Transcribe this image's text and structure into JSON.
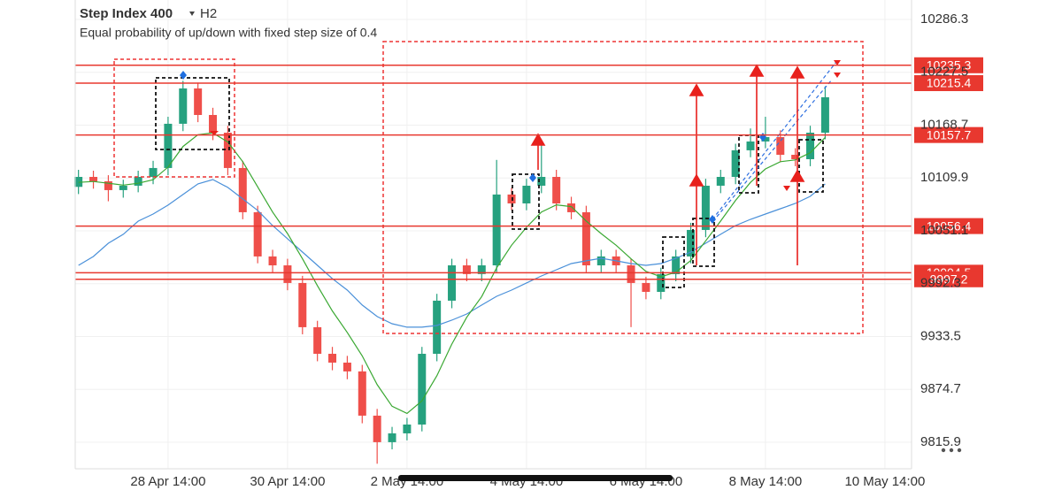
{
  "chart_data": {
    "type": "candlestick",
    "title": "Step Index 400",
    "timeframe": "H2",
    "subtitle": "Equal probability of up/down with fixed step size of 0.4",
    "x": [
      -36,
      -30,
      -24,
      -18,
      -12,
      -6,
      0,
      6,
      12,
      18,
      24,
      30,
      36,
      42,
      48,
      54,
      60,
      66,
      72,
      78,
      84,
      90,
      96,
      102,
      108,
      114,
      120,
      126,
      132,
      138,
      144,
      150,
      156,
      162,
      168,
      174,
      180,
      186,
      192,
      198,
      204,
      210,
      216,
      222,
      228,
      234,
      240,
      246,
      252,
      258,
      264
    ],
    "open": [
      10100.0,
      10111.1,
      10106.2,
      10096.4,
      10101.3,
      10111.1,
      10121.0,
      10170.2,
      10209.5,
      10180.0,
      10160.3,
      10121.0,
      10071.8,
      10022.6,
      10012.7,
      9993.1,
      9943.9,
      9914.3,
      9904.5,
      9894.7,
      9845.5,
      9816.0,
      9825.8,
      9835.6,
      9914.3,
      9973.4,
      10012.7,
      10003.0,
      10012.7,
      10091.5,
      10081.6,
      10101.3,
      10111.1,
      10081.6,
      10071.8,
      10012.7,
      10022.6,
      10012.7,
      9993.1,
      9983.2,
      10002.9,
      10022.6,
      10052.1,
      10101.3,
      10111.1,
      10140.7,
      10150.5,
      10155.4,
      10135.7,
      10130.8,
      10160.3
    ],
    "high": [
      10119,
      10118,
      10113,
      10108,
      10118,
      10129,
      10178,
      10218,
      10216,
      10188,
      10168,
      10129,
      10079,
      10030,
      10020,
      10001,
      9951,
      9922,
      9912,
      9902,
      9853,
      9833,
      9843,
      9922,
      9981,
      10020,
      10020,
      10020,
      10130,
      10099,
      10109,
      10150,
      10119,
      10089,
      10079,
      10030,
      10030,
      10020,
      10000,
      10010,
      10030,
      10060,
      10109,
      10119,
      10148,
      10165,
      10178,
      10163,
      10143,
      10168,
      10212
    ],
    "low": [
      10092,
      10098,
      10084,
      10088,
      10094,
      10103,
      10113,
      10162,
      10172,
      10152,
      10113,
      10064,
      10015,
      10005,
      9985,
      9936,
      9906,
      9896,
      9886,
      9837,
      9792,
      9808,
      9818,
      9828,
      9906,
      9965,
      9995,
      9995,
      10005,
      10074,
      10074,
      10093,
      10074,
      10064,
      10005,
      10005,
      10005,
      9944,
      9975,
      9975,
      9995,
      10015,
      10044,
      10093,
      10103,
      10133,
      10143,
      10128,
      10123,
      10123,
      10153
    ],
    "close": [
      10111.1,
      10106.2,
      10096.4,
      10101.3,
      10111.1,
      10121.0,
      10170.2,
      10209.5,
      10180.0,
      10160.3,
      10121.0,
      10071.8,
      10022.6,
      10012.7,
      9993.1,
      9943.9,
      9914.3,
      9904.5,
      9894.7,
      9845.5,
      9816.0,
      9825.8,
      9835.6,
      9914.3,
      9973.4,
      10012.7,
      10003.0,
      10012.7,
      10091.5,
      10081.6,
      10101.3,
      10111.1,
      10081.6,
      10071.8,
      10012.7,
      10022.6,
      10012.7,
      9993.1,
      9983.2,
      10002.9,
      10022.6,
      10052.1,
      10101.3,
      10111.1,
      10140.7,
      10150.5,
      10155.4,
      10135.7,
      10130.8,
      10160.3,
      10199.7
    ],
    "up_color": "#26a17f",
    "down_color": "#ef4f4a",
    "indicators": [
      {
        "color": "#4a90d9",
        "values": [
          10012.7,
          10022.6,
          10037.3,
          10047.2,
          10061.9,
          10069.8,
          10079.7,
          10091.5,
          10103.3,
          10108.2,
          10099.4,
          10086.6,
          10073.8,
          10057.0,
          10042.3,
          10027.5,
          10012.7,
          9998.0,
          9985.2,
          9968.5,
          9955.7,
          9947.8,
          9943.9,
          9943.9,
          9945.8,
          9951.7,
          9958.6,
          9968.5,
          9978.3,
          9985.2,
          9993.1,
          10000.9,
          10007.8,
          10014.7,
          10017.7,
          10020.6,
          10017.7,
          10014.7,
          10012.7,
          10014.7,
          10020.6,
          10027.5,
          10037.3,
          10047.2,
          10057.0,
          10063.9,
          10069.8,
          10075.7,
          10081.6,
          10089.5,
          10103.3
        ]
      },
      {
        "color": "#3aa832",
        "values": [
          10105,
          10106,
          10104,
          10102,
          10104,
          10108,
          10122,
          10145,
          10158,
          10160,
          10150,
          10128,
          10100,
          10072,
          10048,
          10020,
          9990,
          9962,
          9938,
          9912,
          9880,
          9856,
          9848,
          9862,
          9890,
          9925,
          9955,
          9978,
          10010,
          10035,
          10055,
          10072,
          10080,
          10078,
          10062,
          10048,
          10035,
          10020,
          10006,
          10000,
          10005,
          10018,
          10040,
          10062,
          10085,
          10105,
          10120,
          10128,
          10130,
          10138,
          10155
        ]
      }
    ],
    "levels": [
      10235.3,
      10215.4,
      10157.7,
      10056.4,
      10004.5,
      9997.2
    ],
    "level_color": "#e8382f",
    "xlim": [
      -37.3,
      298.7
    ],
    "xticks": [
      {
        "value": 0,
        "label": "28 Apr 14:00"
      },
      {
        "value": 48,
        "label": "30 Apr 14:00"
      },
      {
        "value": 96,
        "label": "2 May 14:00"
      },
      {
        "value": 144,
        "label": "4 May 14:00"
      },
      {
        "value": 192,
        "label": "6 May 14:00"
      },
      {
        "value": 240,
        "label": "8 May 14:00"
      },
      {
        "value": 288,
        "label": "10 May 14:00"
      }
    ],
    "ylim": [
      9786.4,
      10307.9
    ],
    "yticks": [
      10286.3,
      10227.5,
      10168.7,
      10109.9,
      10051.1,
      9992.3,
      9933.5,
      9874.7,
      9815.9
    ],
    "grid": true
  }
}
